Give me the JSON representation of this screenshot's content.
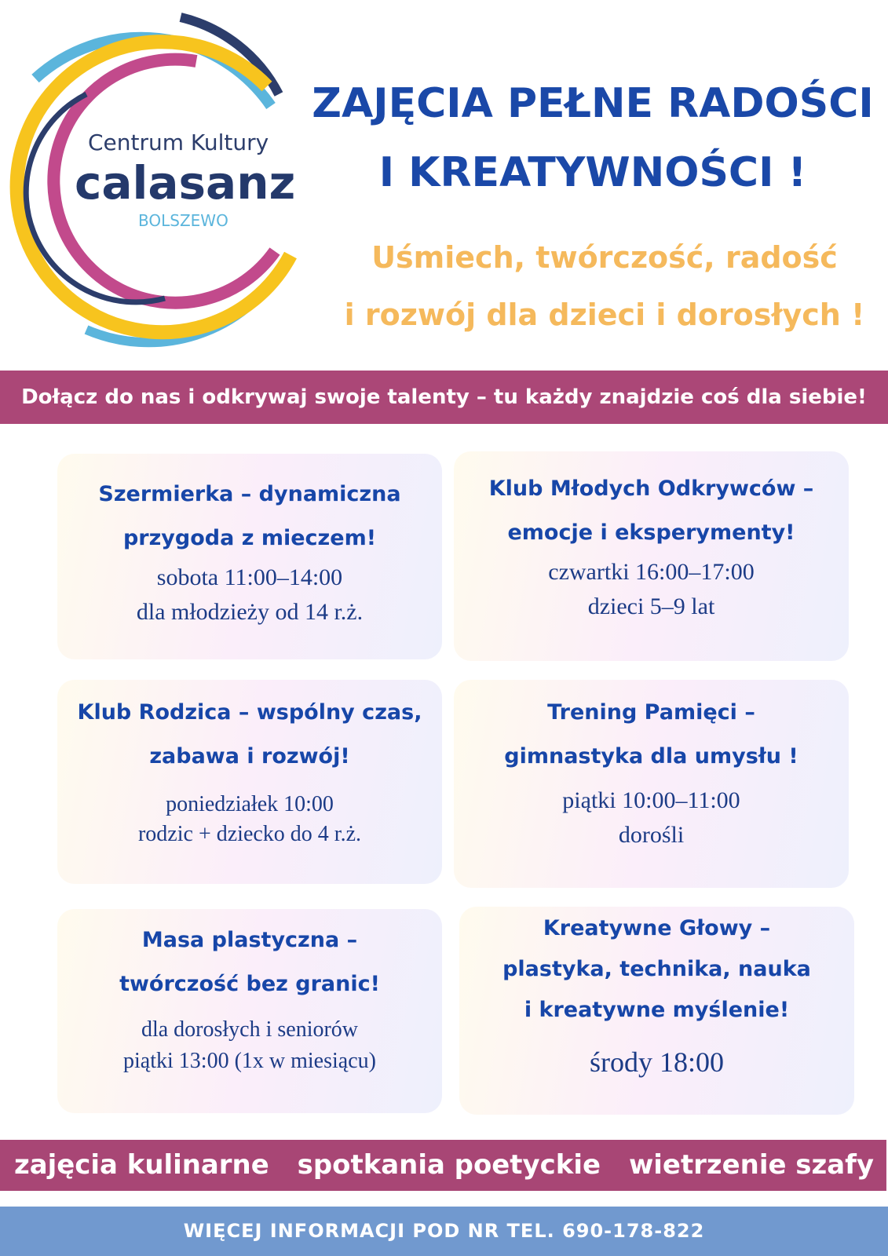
{
  "logo": {
    "line1": "Centrum Kultury",
    "line2": "calasanz",
    "line3": "BOLSZEWO",
    "colors": {
      "navy": "#2c3d6b",
      "lightblue": "#5bb5dc",
      "yellow": "#f7c41e",
      "magenta": "#c24a8c"
    }
  },
  "header": {
    "title_line1": "ZAJĘCIA PEŁNE RADOŚCI",
    "title_line2": "I KREATYWNOŚCI !",
    "subtitle_line1": "Uśmiech, twórczość, radość",
    "subtitle_line2": "i rozwój dla dzieci i dorosłych !"
  },
  "banner": "Dołącz do nas i odkrywaj swoje talenty – tu każdy znajdzie coś dla siebie!",
  "cards": [
    {
      "title": [
        "Szermierka – dynamiczna",
        "przygoda z mieczem!"
      ],
      "details": [
        "sobota 11:00–14:00",
        "dla młodzieży od 14 r.ż."
      ]
    },
    {
      "title": [
        "Klub Młodych Odkrywców –",
        "emocje i eksperymenty!"
      ],
      "details": [
        "czwartki 16:00–17:00",
        "dzieci 5–9 lat"
      ]
    },
    {
      "title": [
        "Klub Rodzica – wspólny czas,",
        "zabawa i rozwój!"
      ],
      "details": [
        "poniedziałek 10:00",
        "rodzic + dziecko do 4 r.ż."
      ]
    },
    {
      "title": [
        "Trening Pamięci –",
        "gimnastyka dla umysłu !"
      ],
      "details": [
        "piątki 10:00–11:00",
        "dorośli"
      ]
    },
    {
      "title": [
        "Masa plastyczna –",
        "twórczość bez granic!"
      ],
      "details": [
        "dla dorosłych i seniorów",
        "piątki 13:00 (1x w miesiącu)"
      ]
    },
    {
      "title": [
        "Kreatywne Głowy –",
        "plastyka, technika, nauka",
        "i kreatywne myślenie!"
      ],
      "details": [
        "środy 18:00"
      ]
    }
  ],
  "extras": [
    "zajęcia kulinarne",
    "spotkania poetyckie",
    "wietrzenie szafy"
  ],
  "footer": "WIĘCEJ INFORMACJI POD NR TEL. 690-178-822",
  "colors": {
    "title": "#1a48a8",
    "subtitle": "#f5b95c",
    "pink_band": "#ab4777",
    "blue_band": "#7199cf"
  }
}
